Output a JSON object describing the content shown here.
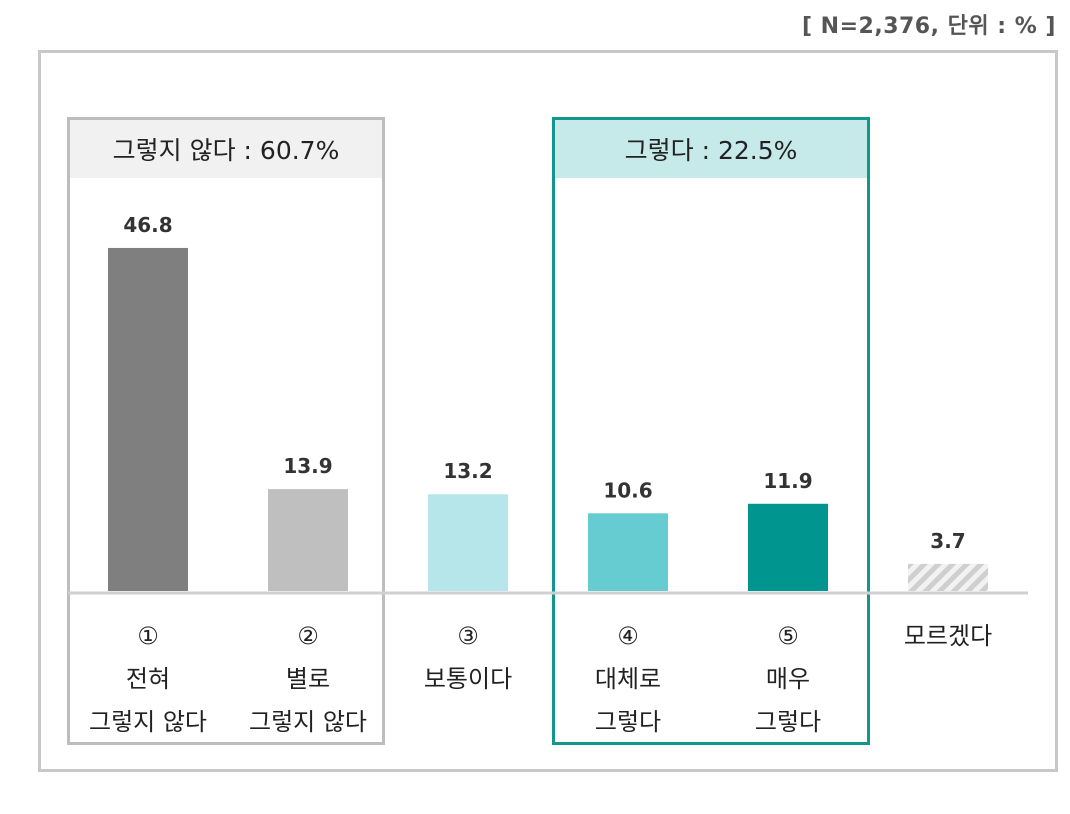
{
  "note": "[ N=2,376, 단위 : % ]",
  "groups": {
    "negative": {
      "label": "그렇지 않다 : 60.7%"
    },
    "positive": {
      "label": "그렇다 : 22.5%"
    }
  },
  "categories": [
    {
      "num": "①",
      "line1": "전혀",
      "line2": "그렇지 않다"
    },
    {
      "num": "②",
      "line1": "별로",
      "line2": "그렇지 않다"
    },
    {
      "num": "③",
      "line1": "보통이다",
      "line2": ""
    },
    {
      "num": "④",
      "line1": "대체로",
      "line2": "그렇다"
    },
    {
      "num": "⑤",
      "line1": "매우",
      "line2": "그렇다"
    },
    {
      "num": "",
      "line1": "모르겠다",
      "line2": ""
    }
  ],
  "chart_data": {
    "type": "bar",
    "categories": [
      "① 전혀 그렇지 않다",
      "② 별로 그렇지 않다",
      "③ 보통이다",
      "④ 대체로 그렇다",
      "⑤ 매우 그렇다",
      "모르겠다"
    ],
    "values": [
      46.8,
      13.9,
      13.2,
      10.6,
      11.9,
      3.7
    ],
    "value_labels": [
      "46.8",
      "13.9",
      "13.2",
      "10.6",
      "11.9",
      "3.7"
    ],
    "colors": [
      "#7f7f7f",
      "#bfbfbf",
      "#b7e6ea",
      "#67cbd2",
      "#00968f",
      "hatch"
    ],
    "hatch_colors": [
      "#f2f2f2",
      "#cfcfcf"
    ],
    "ylim": [
      0,
      50
    ],
    "grid": false,
    "legend": "none"
  }
}
